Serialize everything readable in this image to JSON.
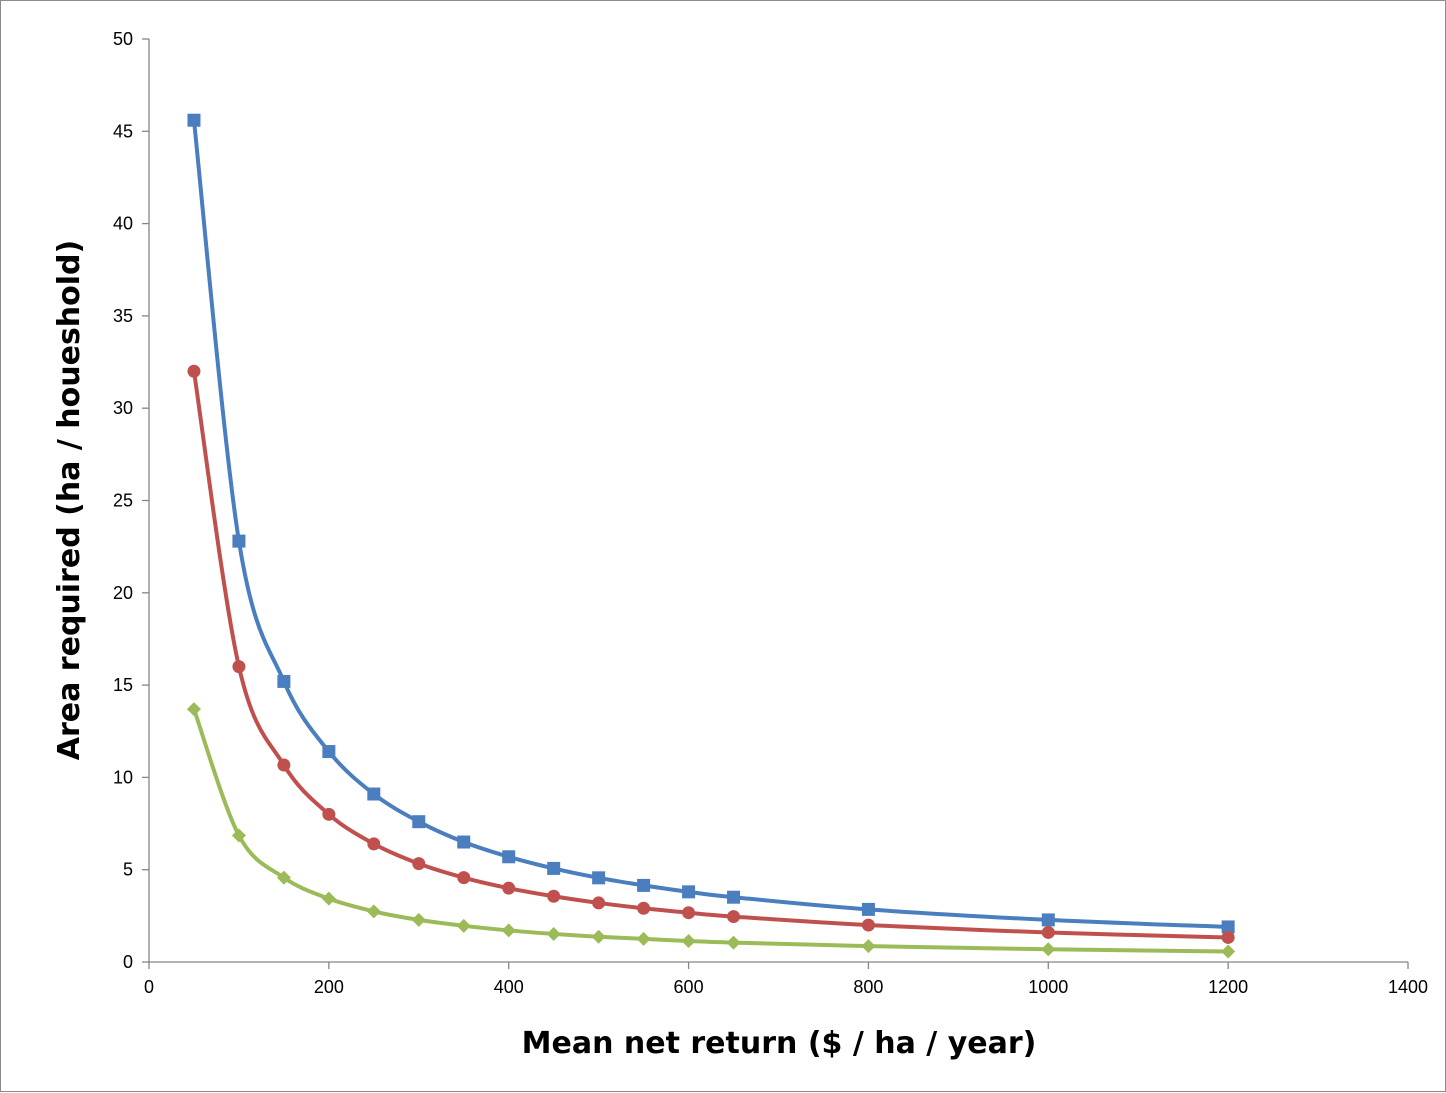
{
  "chart_data": {
    "type": "line",
    "title": "",
    "xlabel": "Mean net return ($ / ha / year)",
    "ylabel": "Area required (ha / houeshold)",
    "xlim": [
      0,
      1400
    ],
    "ylim": [
      0,
      50
    ],
    "x_ticks": [
      "0",
      "200",
      "400",
      "600",
      "800",
      "1000",
      "1200",
      "1400"
    ],
    "y_ticks": [
      "0",
      "5",
      "10",
      "15",
      "20",
      "25",
      "30",
      "35",
      "40",
      "45",
      "50"
    ],
    "grid": false,
    "legend": "none",
    "x": [
      50,
      100,
      150,
      200,
      250,
      300,
      350,
      400,
      450,
      500,
      550,
      600,
      650,
      800,
      1000,
      1200
    ],
    "series": [
      {
        "color": "#4a7ebf",
        "marker": "square",
        "values": [
          45.6,
          22.8,
          15.2,
          11.4,
          9.1,
          7.6,
          6.5,
          5.7,
          5.07,
          4.56,
          4.15,
          3.8,
          3.51,
          2.85,
          2.28,
          1.9
        ]
      },
      {
        "color": "#c0504d",
        "marker": "circle",
        "values": [
          32.0,
          16.0,
          10.67,
          8.0,
          6.4,
          5.33,
          4.57,
          4.0,
          3.56,
          3.2,
          2.91,
          2.67,
          2.46,
          2.0,
          1.6,
          1.33
        ]
      },
      {
        "color": "#9bbb59",
        "marker": "diamond",
        "values": [
          13.7,
          6.85,
          4.57,
          3.43,
          2.74,
          2.28,
          1.96,
          1.71,
          1.52,
          1.37,
          1.25,
          1.14,
          1.05,
          0.86,
          0.69,
          0.57
        ]
      }
    ]
  }
}
